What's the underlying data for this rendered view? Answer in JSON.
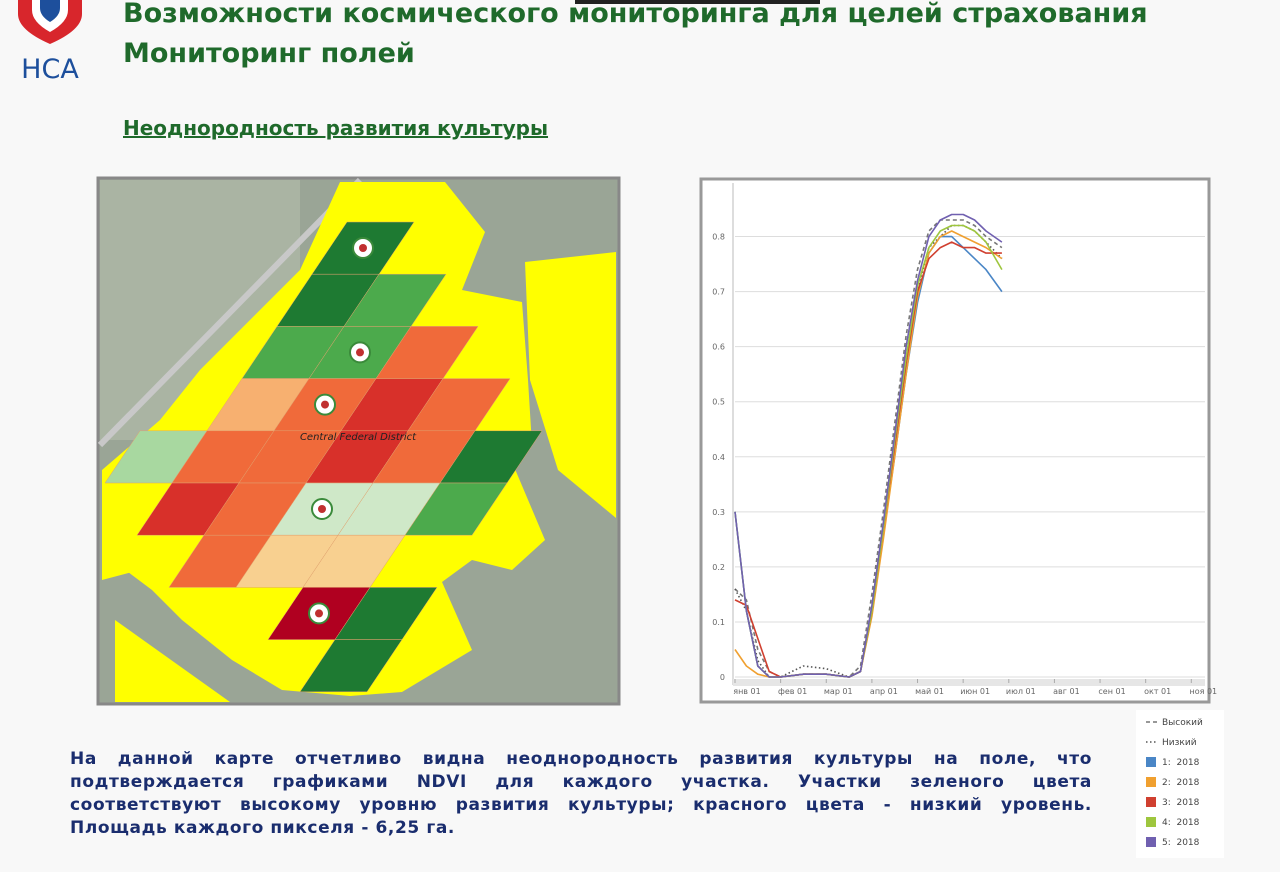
{
  "header": {
    "logo_text": "НСА",
    "title_line1": "Возможности космического мониторинга для целей страхования",
    "title_line2": "Мониторинг полей",
    "subtitle": "Неоднородность развития культуры"
  },
  "map": {
    "region_label": "Central Federal District"
  },
  "paragraph_lines": [
    "На данной карте отчетливо видна неоднородность развития культуры на поле, что",
    "подтверждается графиками NDVI для каждого участка. Участки зеленого цвета",
    "соответствуют высокому уровню развития культуры; красного цвета - низкий уровень.",
    "Площадь каждого пикселя - 6,25 га."
  ],
  "chart_data": {
    "type": "line",
    "x": [
      0,
      0.25,
      0.5,
      0.75,
      1,
      1.5,
      2,
      2.5,
      2.75,
      3,
      3.25,
      3.5,
      3.75,
      4,
      4.25,
      4.5,
      4.75,
      5,
      5.25,
      5.5,
      5.85
    ],
    "xlim": [
      0,
      10.3
    ],
    "xticks": [
      {
        "value": 0,
        "label": "янв 01"
      },
      {
        "value": 1,
        "label": "фев 01"
      },
      {
        "value": 2,
        "label": "мар 01"
      },
      {
        "value": 3,
        "label": "апр 01"
      },
      {
        "value": 4,
        "label": "май 01"
      },
      {
        "value": 5,
        "label": "июн 01"
      },
      {
        "value": 6,
        "label": "июл 01"
      },
      {
        "value": 7,
        "label": "авг 01"
      },
      {
        "value": 8,
        "label": "сен 01"
      },
      {
        "value": 9,
        "label": "окт 01"
      },
      {
        "value": 10,
        "label": "ноя 01"
      }
    ],
    "ylim": [
      0,
      0.89
    ],
    "yticks": [
      0,
      0.1,
      0.2,
      0.3,
      0.4,
      0.5,
      0.6,
      0.7,
      0.8
    ],
    "grid": true,
    "series": [
      {
        "name": "Высокий",
        "color": "#777777",
        "dash": "dashed",
        "values": [
          0.16,
          0.14,
          0.05,
          0.01,
          0,
          0.005,
          0.005,
          0,
          0.02,
          0.15,
          0.3,
          0.46,
          0.62,
          0.74,
          0.81,
          0.83,
          0.83,
          0.83,
          0.82,
          0.8,
          0.78
        ]
      },
      {
        "name": "Низкий",
        "color": "#555555",
        "dash": "dotted",
        "values": [
          0.16,
          0.12,
          0.03,
          0,
          0,
          0.02,
          0.015,
          0,
          0.01,
          0.12,
          0.27,
          0.42,
          0.57,
          0.7,
          0.78,
          0.8,
          0.82,
          0.82,
          0.81,
          0.79,
          0.76
        ]
      },
      {
        "name": "1:  2018",
        "color": "#4a86c6",
        "values": [
          0.3,
          0.12,
          0.02,
          0,
          0,
          0.005,
          0.005,
          0,
          0.01,
          0.12,
          0.26,
          0.4,
          0.55,
          0.68,
          0.77,
          0.8,
          0.8,
          0.78,
          0.76,
          0.74,
          0.7
        ]
      },
      {
        "name": "2:  2018",
        "color": "#f0a030",
        "values": [
          0.05,
          0.02,
          0.005,
          0,
          0,
          0.005,
          0.005,
          0,
          0.01,
          0.11,
          0.25,
          0.4,
          0.55,
          0.69,
          0.77,
          0.8,
          0.81,
          0.8,
          0.79,
          0.78,
          0.76
        ]
      },
      {
        "name": "3:  2018",
        "color": "#d04030",
        "values": [
          0.14,
          0.13,
          0.07,
          0.01,
          0,
          0.005,
          0.005,
          0,
          0.01,
          0.12,
          0.27,
          0.42,
          0.57,
          0.7,
          0.76,
          0.78,
          0.79,
          0.78,
          0.78,
          0.77,
          0.77
        ]
      },
      {
        "name": "4:  2018",
        "color": "#9ec63e",
        "values": [
          0.3,
          0.12,
          0.02,
          0,
          0,
          0.005,
          0.005,
          0,
          0.01,
          0.12,
          0.27,
          0.43,
          0.58,
          0.71,
          0.78,
          0.81,
          0.82,
          0.82,
          0.81,
          0.79,
          0.74
        ]
      },
      {
        "name": "5:  2018",
        "color": "#7060b0",
        "values": [
          0.3,
          0.12,
          0.02,
          0,
          0,
          0.005,
          0.005,
          0,
          0.01,
          0.13,
          0.28,
          0.44,
          0.6,
          0.72,
          0.8,
          0.83,
          0.84,
          0.84,
          0.83,
          0.81,
          0.79
        ]
      }
    ]
  }
}
